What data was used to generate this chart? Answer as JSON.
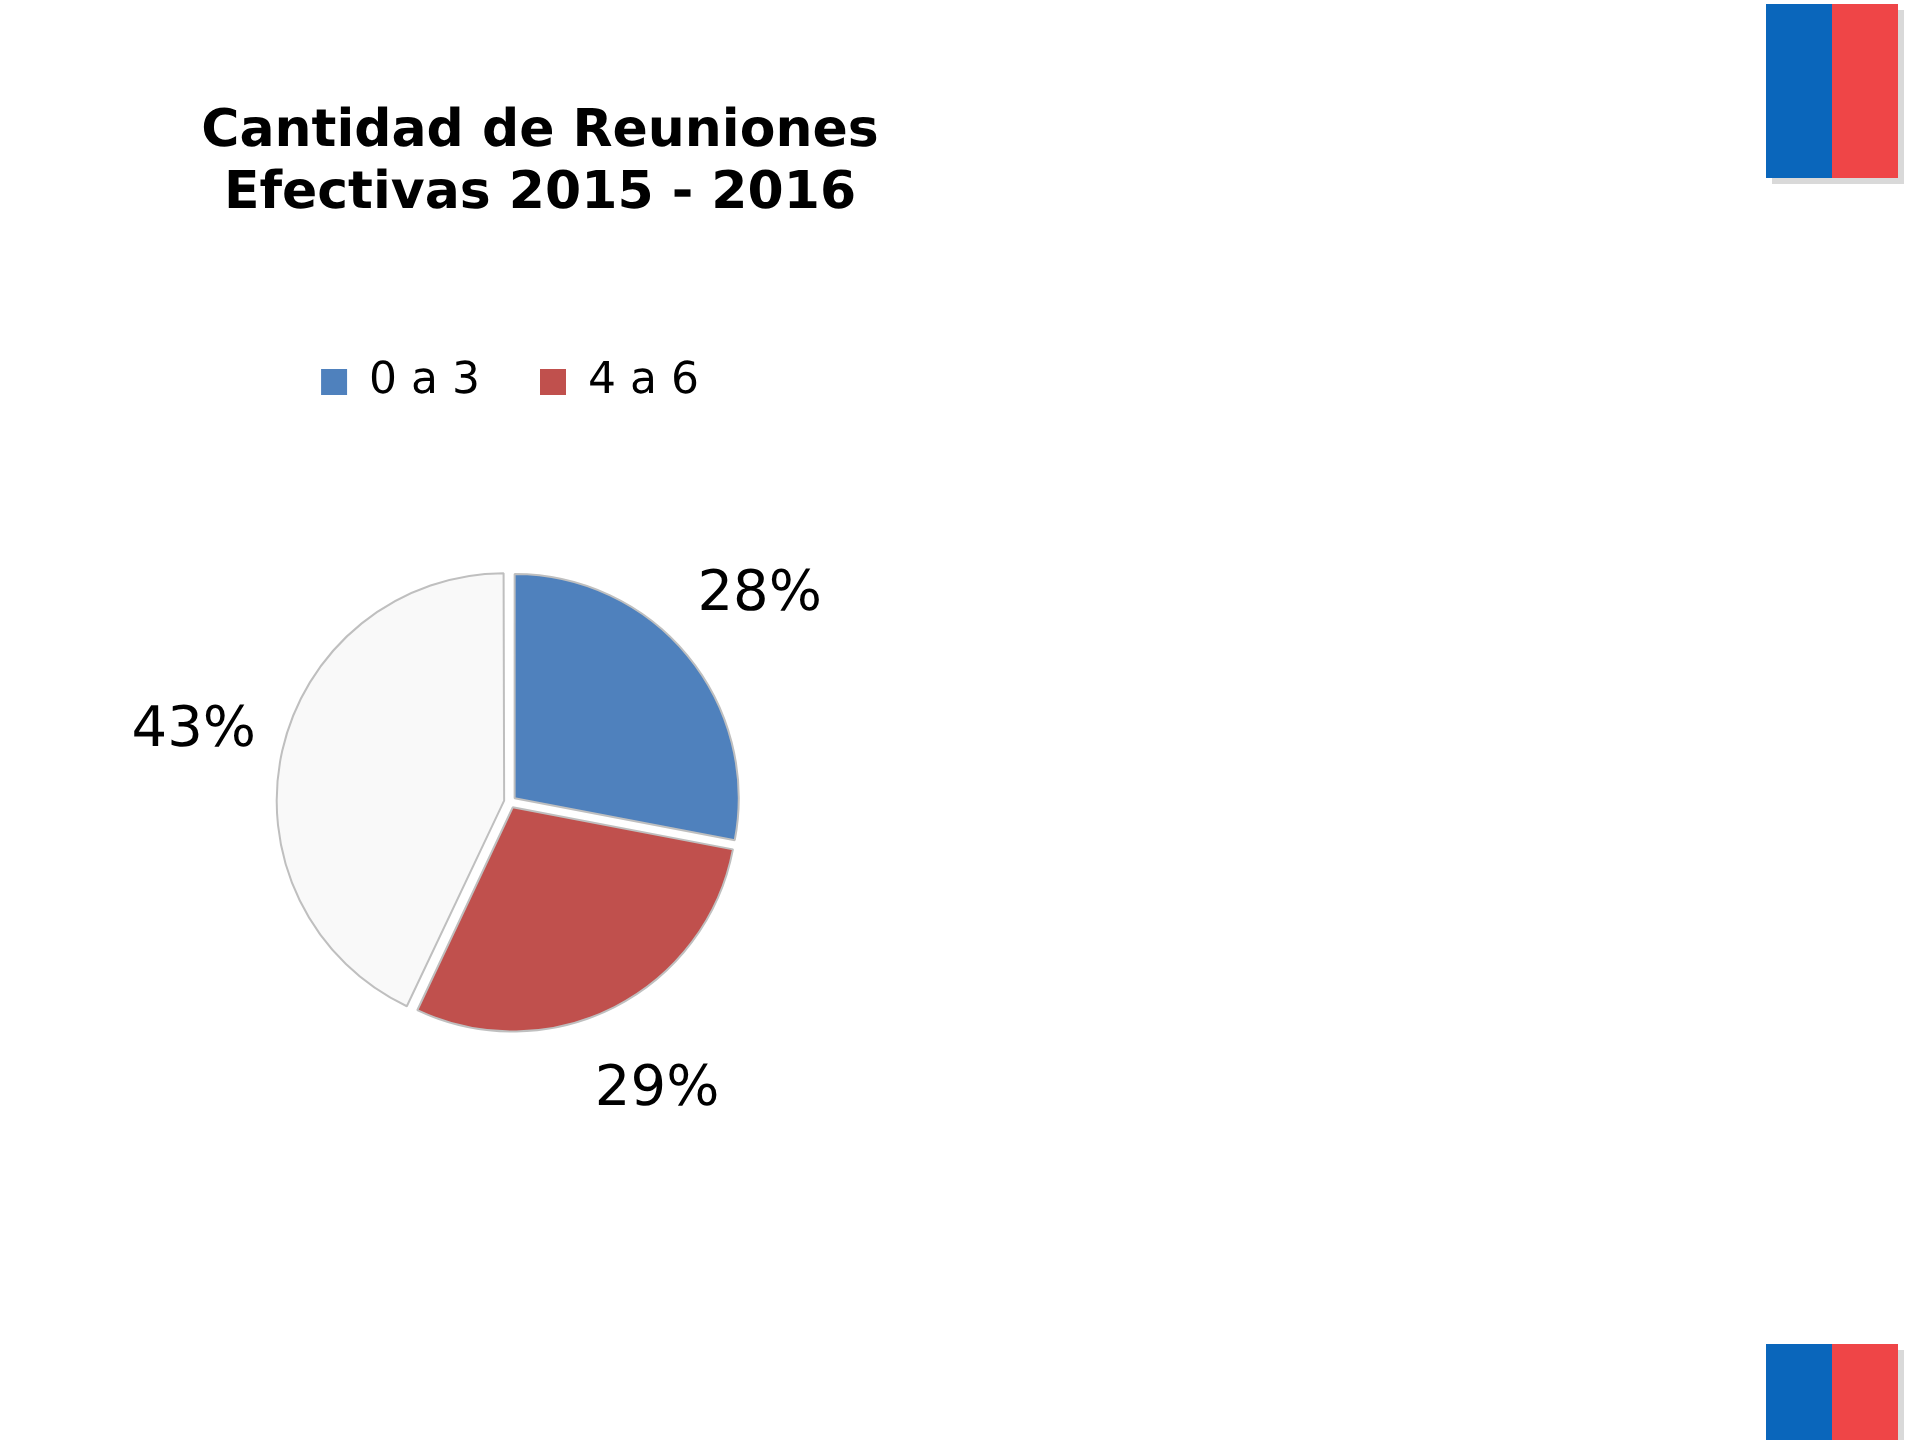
{
  "chart_data": {
    "type": "pie",
    "title": "Cantidad de Reuniones Efectivas 2015 - 2016",
    "categories": [
      "0 a 3",
      "4 a 6",
      null
    ],
    "values": [
      28,
      29,
      43
    ],
    "value_labels": [
      "28%",
      "29%",
      "43%"
    ],
    "colors": [
      "#4f81bd",
      "#c0504d",
      "#f9f9f9"
    ],
    "legend": "top"
  }
}
